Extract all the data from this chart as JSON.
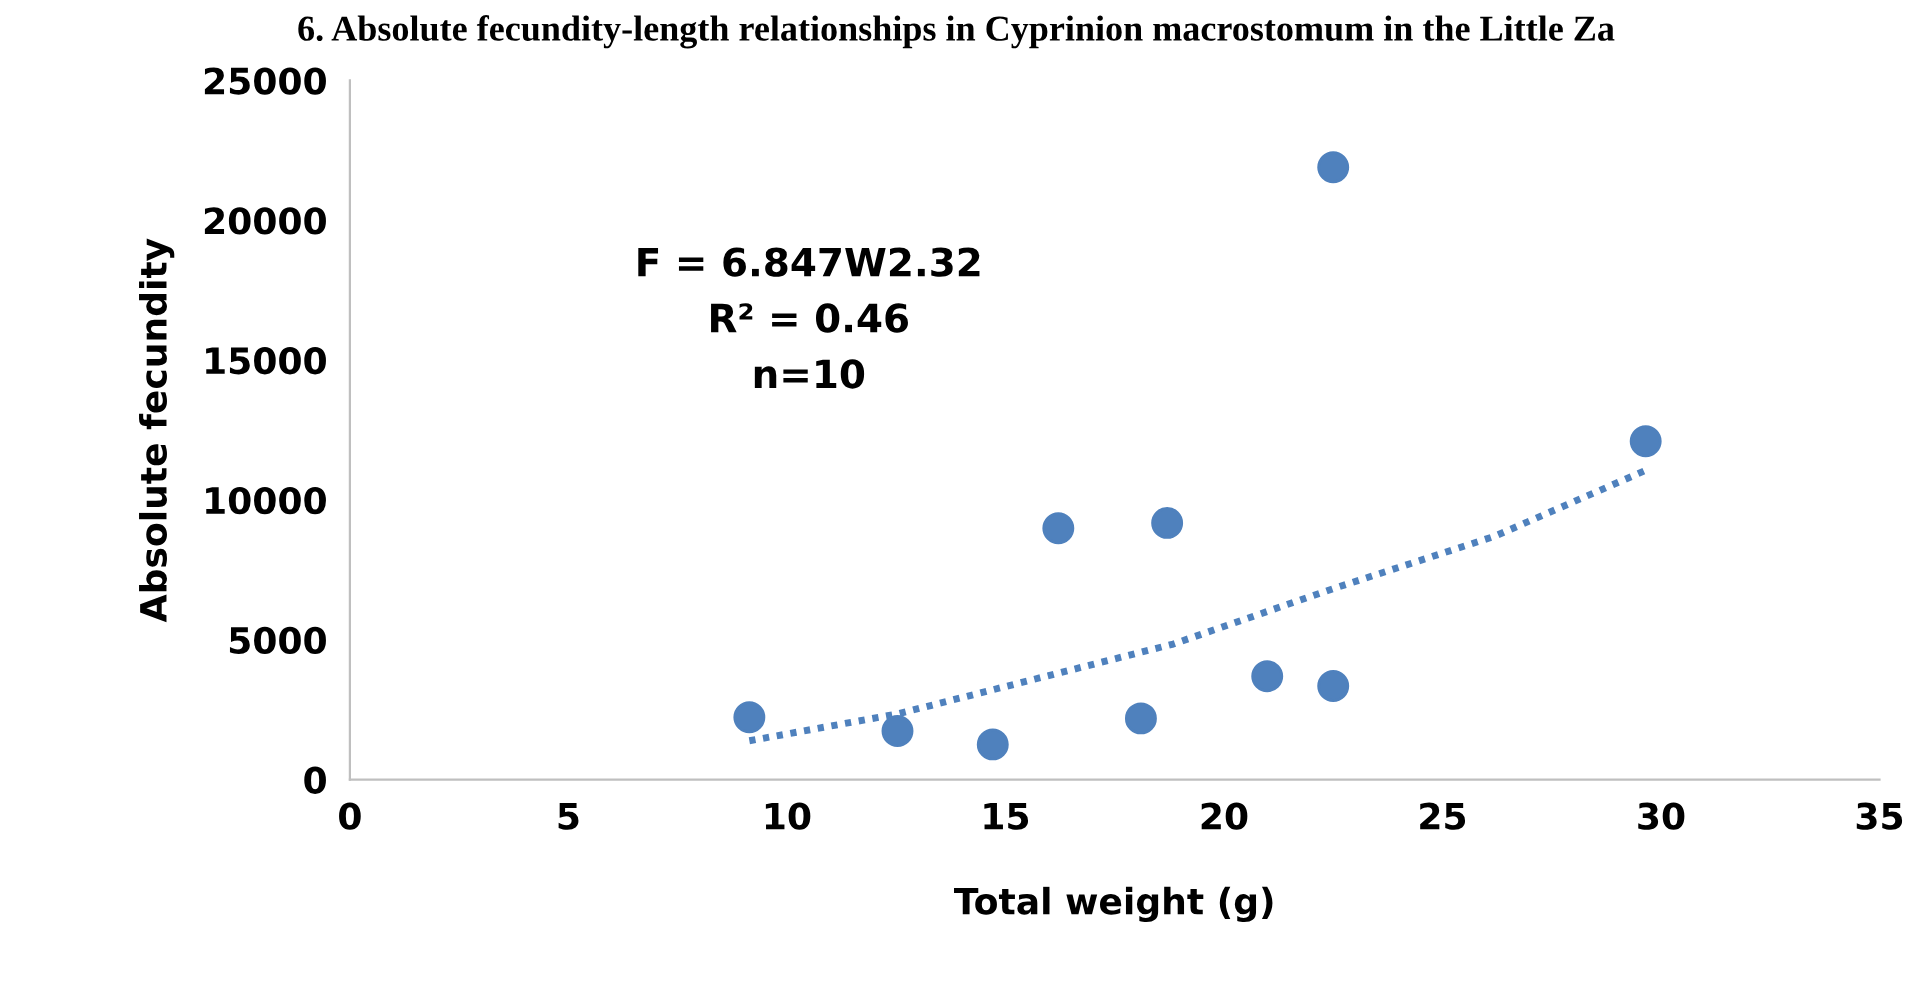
{
  "chart_data": {
    "type": "scatter",
    "title": "6. Absolute fecundity-length relationships in Cyprinion macrostomum in the Little Za",
    "xlabel": "Total weight (g)",
    "ylabel": "Absolute fecundity",
    "series": [
      {
        "color": "#4f81bd",
        "marker": "circle",
        "x": [
          9.14,
          12.53,
          14.71,
          16.21,
          18.7,
          18.1,
          20.99,
          22.5,
          22.5,
          29.65
        ],
        "values": [
          2230,
          1740,
          1260,
          8990,
          9180,
          2190,
          3700,
          3350,
          21900,
          12100
        ]
      },
      {
        "type": "line",
        "color": "#4f81bd",
        "line_style": "dotted",
        "marker": "none",
        "x": [
          9.14,
          12.53,
          18.84,
          22.5,
          26.19,
          29.65
        ],
        "values": [
          1390,
          2350,
          4850,
          6830,
          8700,
          11060
        ]
      }
    ],
    "annotations": [
      "F = 6.847W2.32",
      "R² = 0.46",
      "n=10"
    ],
    "xlim": [
      0,
      35
    ],
    "xticks": [
      0,
      5,
      10,
      15,
      20,
      25,
      30,
      35
    ],
    "ylim": [
      0,
      25000
    ],
    "yticks": [
      0,
      5000,
      10000,
      15000,
      20000,
      25000
    ],
    "grid": false,
    "legend": false
  }
}
